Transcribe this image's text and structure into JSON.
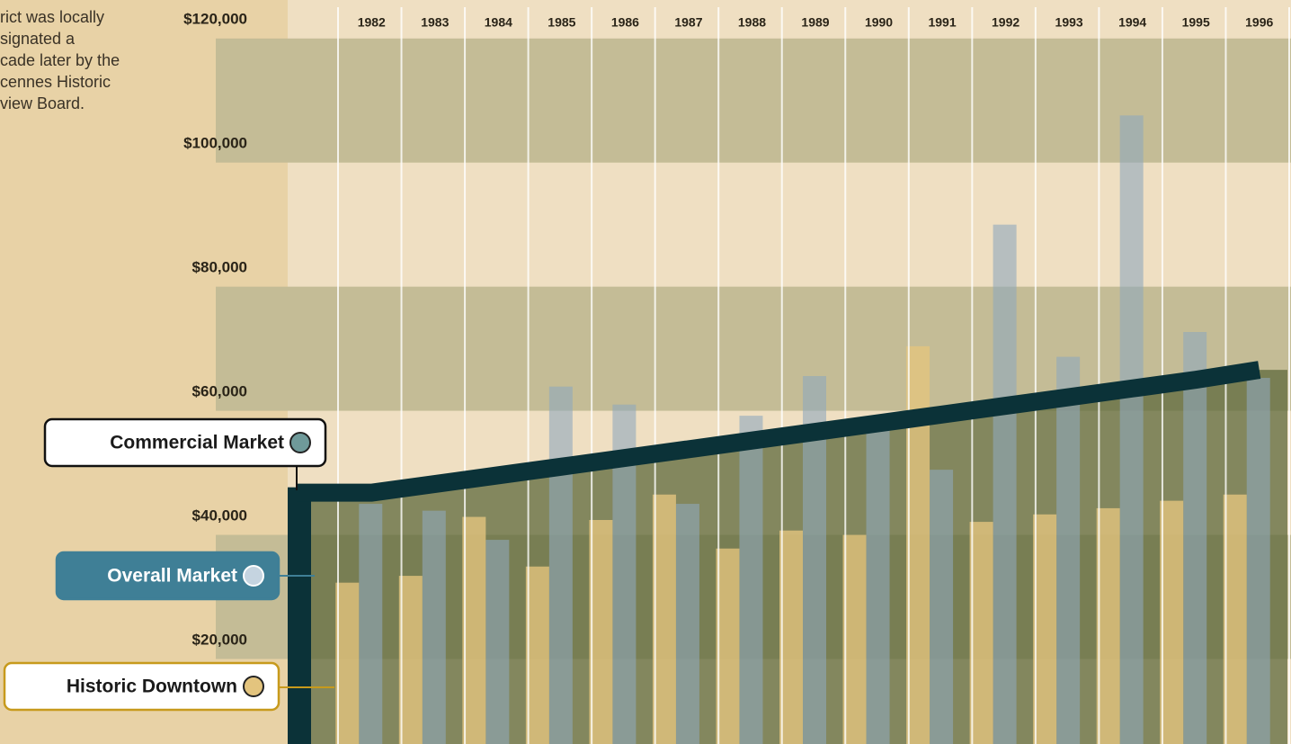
{
  "note_lines": [
    "rict was locally",
    "signated a",
    "cade later by the",
    "cennes Historic",
    "view Board."
  ],
  "chart_data": {
    "type": "bar",
    "categories": [
      "1982",
      "1983",
      "1984",
      "1985",
      "1986",
      "1987",
      "1988",
      "1989",
      "1990",
      "1991",
      "1992",
      "1993",
      "1994",
      "1995",
      "1996"
    ],
    "series": [
      {
        "name": "Commercial Market",
        "type": "line",
        "color": "#0b3238",
        "values": [
          43800,
          45200,
          46600,
          48000,
          49400,
          50800,
          52200,
          53600,
          55000,
          56400,
          57800,
          59200,
          60600,
          62000,
          63600
        ]
      },
      {
        "name": "Overall Market",
        "type": "bar",
        "color": "#8fa9bd",
        "values": [
          42000,
          40900,
          36200,
          60900,
          58000,
          42000,
          56200,
          62600,
          53900,
          47500,
          87000,
          65700,
          104600,
          69700,
          62300
        ]
      },
      {
        "name": "Historic Downtown",
        "type": "bar",
        "color": "#e3c47e",
        "values": [
          29300,
          30400,
          39900,
          31900,
          39400,
          43500,
          34800,
          37700,
          37000,
          67400,
          39100,
          40300,
          41300,
          42500,
          43500
        ]
      }
    ],
    "ylim": [
      3300,
      123200
    ],
    "yticks": [
      {
        "value": 20000,
        "label": "$20,000"
      },
      {
        "value": 40000,
        "label": "$40,000"
      },
      {
        "value": 60000,
        "label": "$60,000"
      },
      {
        "value": 80000,
        "label": "$80,000"
      },
      {
        "value": 100000,
        "label": "$100,000"
      },
      {
        "value": 120000,
        "label": "$120,000"
      }
    ]
  }
}
